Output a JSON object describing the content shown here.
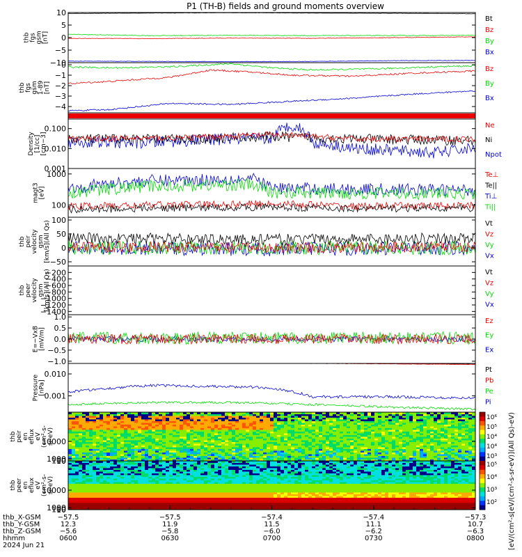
{
  "title": "P1 (TH-B) fields and ground moments overview",
  "colors": {
    "black": "#000000",
    "red": "#ee0000",
    "green": "#00dd00",
    "blue": "#0000dd"
  },
  "chart_data": [
    {
      "type": "line",
      "ylabel": [
        "thb",
        "fgs",
        "gsm",
        "[nT]"
      ],
      "ylim": [
        -10,
        10
      ],
      "yticks": [
        "10",
        "5",
        "0",
        "−5",
        "−10"
      ],
      "legend": [
        {
          "label": "Bt",
          "color": "black"
        },
        {
          "label": "Bz",
          "color": "red"
        },
        {
          "label": "By",
          "color": "green"
        },
        {
          "label": "Bx",
          "color": "blue"
        }
      ],
      "series": [
        {
          "name": "Bt",
          "color": "black",
          "x": [
            0,
            0.2,
            0.4,
            0.6,
            0.8,
            1
          ],
          "values": [
            9.6,
            9.8,
            9.9,
            9.8,
            9.7,
            9.5
          ],
          "noise": 0.05
        },
        {
          "name": "Bz",
          "color": "red",
          "x": [
            0,
            0.2,
            0.4,
            0.6,
            0.8,
            1
          ],
          "values": [
            -0.3,
            -0.4,
            -0.2,
            -0.3,
            0,
            0.3
          ],
          "noise": 0.1
        },
        {
          "name": "By",
          "color": "green",
          "x": [
            0,
            0.2,
            0.4,
            0.6,
            0.8,
            1
          ],
          "values": [
            1.3,
            0.8,
            0.9,
            0.8,
            0.8,
            0.9
          ],
          "noise": 0.12
        },
        {
          "name": "Bx",
          "color": "blue",
          "x": [
            0,
            0.2,
            0.4,
            0.6,
            0.8,
            1
          ],
          "values": [
            -9.4,
            -9.5,
            -9.6,
            -9.5,
            -9.2,
            -9.1
          ],
          "noise": 0.08
        }
      ]
    },
    {
      "type": "line",
      "ylabel": [
        "thb",
        "fgs",
        "gsm",
        "1-89",
        "[nT]"
      ],
      "ylim": [
        -4.6,
        0.2
      ],
      "yticks": [
        "0",
        "−1",
        "−2",
        "−3",
        "−4"
      ],
      "legend": [
        {
          "label": "Bz",
          "color": "red"
        },
        {
          "label": "By",
          "color": "green"
        },
        {
          "label": "Bx",
          "color": "blue"
        }
      ],
      "series": [
        {
          "name": "By",
          "color": "green",
          "x": [
            0,
            0.1,
            0.25,
            0.4,
            0.5,
            0.6,
            0.75,
            0.9,
            1
          ],
          "values": [
            -0.2,
            -0.3,
            -0.2,
            0.1,
            -0.3,
            -0.5,
            -0.4,
            -0.2,
            -0.1
          ],
          "noise": 0.08
        },
        {
          "name": "Bz",
          "color": "red",
          "x": [
            0,
            0.1,
            0.25,
            0.35,
            0.45,
            0.55,
            0.7,
            0.85,
            1
          ],
          "values": [
            -1.8,
            -1.6,
            -1.2,
            -0.5,
            -0.7,
            -1.0,
            -1.1,
            -0.8,
            -0.6
          ],
          "noise": 0.08
        },
        {
          "name": "Bx",
          "color": "blue",
          "x": [
            0,
            0.1,
            0.25,
            0.4,
            0.55,
            0.7,
            0.85,
            1
          ],
          "values": [
            -4.4,
            -4.3,
            -3.7,
            -3.8,
            -3.5,
            -3.2,
            -2.8,
            -2.5
          ],
          "noise": 0.07
        }
      ]
    },
    {
      "type": "table",
      "band": "red"
    },
    {
      "type": "line",
      "log": true,
      "ylabel": [
        "Density",
        "[1/cc]",
        "[cm−3]"
      ],
      "ylim": [
        0.001,
        0.3
      ],
      "yticks": [
        "0.100",
        "0.010",
        "0.001"
      ],
      "ytickvalues": [
        0.1,
        0.01,
        0.001
      ],
      "legend": [
        {
          "label": "Ne",
          "color": "red"
        },
        {
          "label": "Ni",
          "color": "black"
        },
        {
          "label": "Npot",
          "color": "blue"
        }
      ],
      "series": [
        {
          "name": "Npot",
          "color": "blue",
          "x": [
            0,
            0.2,
            0.4,
            0.5,
            0.55,
            0.6,
            0.7,
            0.8,
            0.9,
            1
          ],
          "values": [
            0.02,
            0.02,
            0.03,
            0.03,
            0.15,
            0.02,
            0.01,
            0.008,
            0.006,
            0.01
          ],
          "noise": 0.3
        },
        {
          "name": "Ni",
          "color": "black",
          "x": [
            0,
            0.3,
            0.5,
            0.7,
            1
          ],
          "values": [
            0.03,
            0.03,
            0.04,
            0.03,
            0.025
          ],
          "noise": 0.25
        },
        {
          "name": "Ne",
          "color": "red",
          "x": [
            0,
            0.3,
            0.5,
            0.7,
            1
          ],
          "values": [
            0.03,
            0.035,
            0.05,
            0.03,
            0.03
          ],
          "noise": 0.15
        }
      ]
    },
    {
      "type": "line",
      "log": true,
      "ylabel": [
        "magt3",
        "[eV]"
      ],
      "ylim": [
        40,
        1500
      ],
      "yticks": [
        "1000",
        "100"
      ],
      "ytickvalues": [
        1000,
        100
      ],
      "legend": [
        {
          "label": "Te⊥",
          "color": "red"
        },
        {
          "label": "Te||",
          "color": "black"
        },
        {
          "label": "Ti⊥",
          "color": "blue"
        },
        {
          "label": "Ti||",
          "color": "green"
        }
      ],
      "series": [
        {
          "name": "Ti⊥",
          "color": "blue",
          "x": [
            0,
            0.2,
            0.45,
            0.5,
            0.7,
            1
          ],
          "values": [
            350,
            600,
            700,
            350,
            320,
            300
          ],
          "noise": 0.2
        },
        {
          "name": "Ti||",
          "color": "green",
          "x": [
            0,
            0.2,
            0.45,
            0.5,
            0.7,
            1
          ],
          "values": [
            250,
            400,
            450,
            250,
            240,
            230
          ],
          "noise": 0.2
        },
        {
          "name": "Te⊥",
          "color": "red",
          "x": [
            0,
            0.25,
            0.5,
            0.7,
            1
          ],
          "values": [
            90,
            100,
            110,
            90,
            95
          ],
          "noise": 0.12
        },
        {
          "name": "Te||",
          "color": "black",
          "x": [
            0,
            0.25,
            0.5,
            0.7,
            1
          ],
          "values": [
            70,
            80,
            85,
            75,
            80
          ],
          "noise": 0.12
        }
      ]
    },
    {
      "type": "line",
      "ylabel": [
        "thb",
        "peir",
        "velocity",
        "gsm",
        "[km/s](All Qs)"
      ],
      "ylim": [
        -65,
        110
      ],
      "yticks": [
        "100",
        "50",
        "0",
        "−50"
      ],
      "legend": [
        {
          "label": "Vt",
          "color": "black"
        },
        {
          "label": "Vz",
          "color": "red"
        },
        {
          "label": "Vy",
          "color": "green"
        },
        {
          "label": "Vx",
          "color": "blue"
        }
      ],
      "series": [
        {
          "name": "Vx",
          "color": "blue",
          "x": [
            0,
            0.5,
            1
          ],
          "values": [
            0,
            -5,
            0
          ],
          "noise": 25
        },
        {
          "name": "Vy",
          "color": "green",
          "x": [
            0,
            0.5,
            1
          ],
          "values": [
            0,
            0,
            0
          ],
          "noise": 25
        },
        {
          "name": "Vz",
          "color": "red",
          "x": [
            0,
            0.5,
            1
          ],
          "values": [
            5,
            0,
            5
          ],
          "noise": 20
        },
        {
          "name": "Vt",
          "color": "black",
          "x": [
            0,
            0.5,
            1
          ],
          "values": [
            35,
            30,
            35
          ],
          "noise": 20
        }
      ]
    },
    {
      "type": "line",
      "ylabel": [
        "thb",
        "peer",
        "velocity",
        "gsm",
        "[km/s](All Qs)"
      ],
      "ylim": [
        -1500,
        0
      ],
      "yticks": [
        "−200",
        "−400",
        "−600",
        "−800",
        "−1000",
        "−1200",
        "−1400"
      ],
      "ytickvalues": [
        -200,
        -400,
        -600,
        -800,
        -1000,
        -1200,
        -1400
      ],
      "legend": [
        {
          "label": "Vt",
          "color": "black"
        },
        {
          "label": "Vz",
          "color": "red"
        },
        {
          "label": "Vy",
          "color": "green"
        },
        {
          "label": "Vx",
          "color": "blue"
        }
      ],
      "series": []
    },
    {
      "type": "line",
      "ylabel": [
        "E=−VxB",
        "[mV/m]"
      ],
      "ylim": [
        -1.1,
        1.1
      ],
      "yticks": [
        "1.0",
        "0.5",
        "0.0",
        "−0.5",
        "−1.0"
      ],
      "legend": [
        {
          "label": "Ez",
          "color": "red"
        },
        {
          "label": "Ey",
          "color": "green"
        },
        {
          "label": "Ex",
          "color": "blue"
        }
      ],
      "series": [
        {
          "name": "Ex",
          "color": "blue",
          "x": [
            0,
            1
          ],
          "values": [
            0,
            0
          ],
          "noise": 0.12
        },
        {
          "name": "Ey",
          "color": "green",
          "x": [
            0,
            1
          ],
          "values": [
            0.05,
            0.05
          ],
          "noise": 0.28
        },
        {
          "name": "Ez",
          "color": "red",
          "x": [
            0,
            1
          ],
          "values": [
            0,
            0
          ],
          "noise": 0.22
        }
      ]
    },
    {
      "type": "line",
      "log": true,
      "ylabel": [
        "Pressure",
        "[nPa]"
      ],
      "ylim": [
        0.00018,
        0.03
      ],
      "yticks": [
        "0.010",
        "0.001"
      ],
      "ytickvalues": [
        0.01,
        0.001
      ],
      "legend": [
        {
          "label": "Pt",
          "color": "black"
        },
        {
          "label": "Pb",
          "color": "red"
        },
        {
          "label": "Pe",
          "color": "green"
        },
        {
          "label": "Pi",
          "color": "blue"
        }
      ],
      "series": [
        {
          "name": "Pi",
          "color": "blue",
          "x": [
            0,
            0.1,
            0.2,
            0.3,
            0.45,
            0.52,
            0.6,
            0.8,
            1
          ],
          "values": [
            0.0015,
            0.0022,
            0.003,
            0.0028,
            0.0025,
            0.002,
            0.0009,
            0.0009,
            0.0008
          ],
          "noise": 0.06
        },
        {
          "name": "Pe",
          "color": "green",
          "x": [
            0,
            0.2,
            0.4,
            0.6,
            0.8,
            1
          ],
          "values": [
            0.0004,
            0.0005,
            0.0005,
            0.0004,
            0.0003,
            0.00025
          ],
          "noise": 0.05
        },
        {
          "name": "Pt",
          "color": "black",
          "x": [
            0,
            0.5,
            1
          ],
          "values": [
            0.033,
            0.032,
            0.028
          ],
          "noise": 0.01
        },
        {
          "name": "Pb",
          "color": "red",
          "x": [
            0,
            0.5,
            1
          ],
          "values": [
            0.032,
            0.031,
            0.027
          ],
          "noise": 0.01
        }
      ]
    },
    {
      "type": "heatmap",
      "ylabel": [
        "thb",
        "peir",
        "en",
        "eflux",
        "eV",
        "(cm²-s-",
        "sr-eV)"
      ],
      "yticks": [
        "10000",
        "1000",
        "100",
        "10"
      ],
      "ytickvalues": [
        10000,
        1000,
        100,
        10
      ],
      "ylim": [
        7,
        25000
      ],
      "pattern": "ion"
    },
    {
      "type": "heatmap",
      "ylabel": [
        "thb",
        "peer",
        "en",
        "eflux",
        "eV",
        "(cm²-s-",
        "sr-eV)"
      ],
      "yticks": [
        "10000",
        "1000",
        "100",
        "10"
      ],
      "ytickvalues": [
        10000,
        1000,
        100,
        10
      ],
      "ylim": [
        7,
        25000
      ],
      "pattern": "electron"
    }
  ],
  "colorbar": {
    "ticks_upper": [
      "10⁶",
      "10⁵",
      "10⁴",
      "10⁴",
      "10³"
    ],
    "ticks_lower": [
      "10⁵",
      "10⁴",
      "10³",
      "10²"
    ],
    "label": "[eV/(cm²-s[eV/(cm²-s-sr-eV)](All Qs)-eV)"
  },
  "xaxis": {
    "rows": [
      {
        "label": "thb_X-GSM",
        "values": [
          "−57.5",
          "−57.5",
          "−57.4",
          "−57.4",
          "−57.3"
        ]
      },
      {
        "label": "thb_Y-GSM",
        "values": [
          "12.3",
          "11.9",
          "11.5",
          "11.1",
          "10.7"
        ]
      },
      {
        "label": "thb_Z-GSM",
        "values": [
          "−5.6",
          "−5.8",
          "−6.0",
          "−6.2",
          "−6.3"
        ]
      },
      {
        "label": "hhmm",
        "values": [
          "0600",
          "0630",
          "0700",
          "0730",
          "0800"
        ]
      }
    ],
    "date": "2024 Jun 21"
  }
}
